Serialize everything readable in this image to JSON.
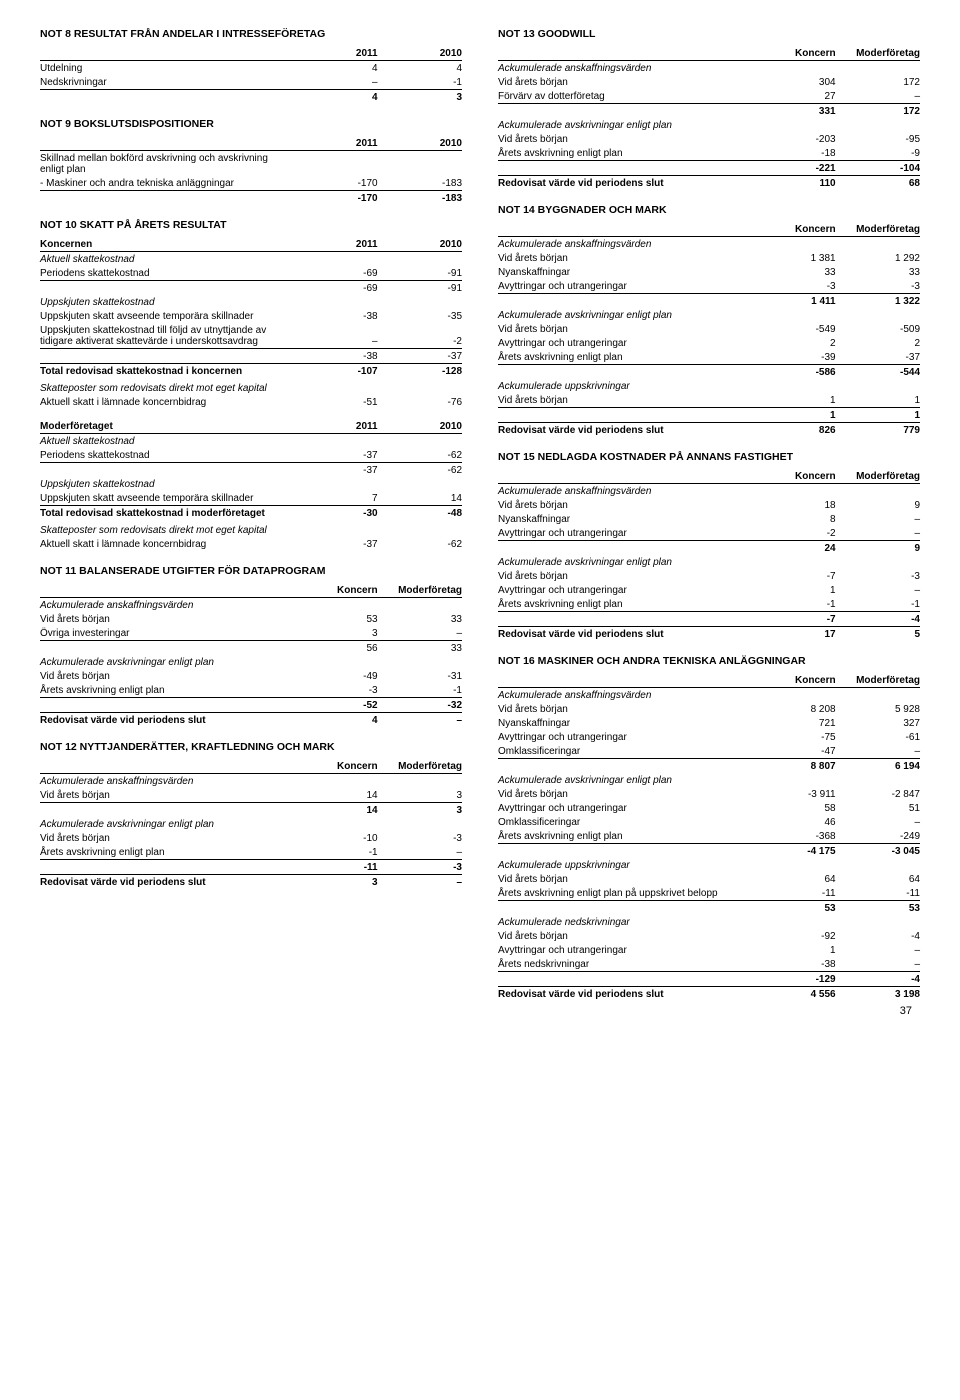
{
  "pageNumber": "37",
  "left": {
    "not8": {
      "title": "NOT 8   RESULTAT FRÅN ANDELAR I INTRESSEFÖRETAG",
      "hdr": [
        "",
        "2011",
        "2010"
      ],
      "rows": [
        [
          "Utdelning",
          "4",
          "4"
        ],
        [
          "Nedskrivningar",
          "–",
          "-1"
        ]
      ],
      "sum": [
        "",
        "4",
        "3"
      ]
    },
    "not9": {
      "title": "NOT 9   BOKSLUTSDISPOSITIONER",
      "hdr": [
        "",
        "2011",
        "2010"
      ],
      "rows": [
        [
          "Skillnad mellan bokförd avskrivning och avskrivning enligt plan",
          "",
          ""
        ],
        [
          "-  Maskiner och andra tekniska anläggningar",
          "-170",
          "-183"
        ]
      ],
      "sum": [
        "",
        "-170",
        "-183"
      ]
    },
    "not10": {
      "title": "NOT 10   SKATT PÅ ÅRETS RESULTAT",
      "k_hdr": [
        "Koncernen",
        "2011",
        "2010"
      ],
      "k_rows": [
        {
          "lbl": "Aktuell skattekostnad",
          "v1": "",
          "v2": "",
          "ital": true
        },
        {
          "lbl": "Periodens skattekostnad",
          "v1": "-69",
          "v2": "-91"
        },
        {
          "lbl": "",
          "v1": "-69",
          "v2": "-91",
          "sum": true
        },
        {
          "lbl": "Uppskjuten skattekostnad",
          "v1": "",
          "v2": "",
          "ital": true
        },
        {
          "lbl": "Uppskjuten skatt avseende temporära skillnader",
          "v1": "-38",
          "v2": "-35"
        },
        {
          "lbl": "Uppskjuten skattekostnad till följd av utnyttjande av tidigare aktiverat skattevärde i underskottsavdrag",
          "v1": "–",
          "v2": "-2"
        },
        {
          "lbl": "",
          "v1": "-38",
          "v2": "-37",
          "sum": true
        },
        {
          "lbl": "Total redovisad skattekostnad i koncernen",
          "v1": "-107",
          "v2": "-128",
          "bold": true,
          "btop": true
        },
        {
          "lbl": "",
          "v1": "",
          "v2": ""
        },
        {
          "lbl": "Skatteposter som redovisats direkt mot eget kapital",
          "v1": "",
          "v2": "",
          "ital": true
        },
        {
          "lbl": "Aktuell skatt i lämnade koncernbidrag",
          "v1": "-51",
          "v2": "-76"
        }
      ],
      "m_hdr": [
        "Moderföretaget",
        "2011",
        "2010"
      ],
      "m_rows": [
        {
          "lbl": "Aktuell skattekostnad",
          "v1": "",
          "v2": "",
          "ital": true
        },
        {
          "lbl": "Periodens skattekostnad",
          "v1": "-37",
          "v2": "-62"
        },
        {
          "lbl": "",
          "v1": "-37",
          "v2": "-62",
          "sum": true
        },
        {
          "lbl": "Uppskjuten skattekostnad",
          "v1": "",
          "v2": "",
          "ital": true
        },
        {
          "lbl": "Uppskjuten skatt avseende temporära skillnader",
          "v1": "7",
          "v2": "14"
        },
        {
          "lbl": "Total redovisad skattekostnad i moderföretaget",
          "v1": "-30",
          "v2": "-48",
          "bold": true,
          "btop": true
        },
        {
          "lbl": "",
          "v1": "",
          "v2": ""
        },
        {
          "lbl": "Skatteposter som redovisats direkt mot eget kapital",
          "v1": "",
          "v2": "",
          "ital": true
        },
        {
          "lbl": "Aktuell skatt i lämnade koncernbidrag",
          "v1": "-37",
          "v2": "-62"
        }
      ]
    },
    "not11": {
      "title": "NOT 11   BALANSERADE UTGIFTER FÖR DATAPROGRAM",
      "hdr": [
        "",
        "Koncern",
        "Moderföretag"
      ],
      "rows": [
        {
          "lbl": "Ackumulerade anskaffningsvärden",
          "v1": "",
          "v2": "",
          "ital": true
        },
        {
          "lbl": "Vid årets början",
          "v1": "53",
          "v2": "33"
        },
        {
          "lbl": "Övriga investeringar",
          "v1": "3",
          "v2": "–"
        },
        {
          "lbl": "",
          "v1": "56",
          "v2": "33",
          "sum": true
        },
        {
          "lbl": "Ackumulerade avskrivningar enligt plan",
          "v1": "",
          "v2": "",
          "ital": true
        },
        {
          "lbl": "Vid årets början",
          "v1": "-49",
          "v2": "-31"
        },
        {
          "lbl": "Årets avskrivning enligt plan",
          "v1": "-3",
          "v2": "-1"
        },
        {
          "lbl": "",
          "v1": "-52",
          "v2": "-32",
          "sum": true,
          "bold": true
        },
        {
          "lbl": "Redovisat värde vid periodens slut",
          "v1": "4",
          "v2": "–",
          "bold": true,
          "btop": true
        }
      ]
    },
    "not12": {
      "title": "NOT 12   NYTTJANDERÄTTER, KRAFTLEDNING OCH MARK",
      "hdr": [
        "",
        "Koncern",
        "Moderföretag"
      ],
      "rows": [
        {
          "lbl": "Ackumulerade anskaffningsvärden",
          "v1": "",
          "v2": "",
          "ital": true
        },
        {
          "lbl": "Vid årets början",
          "v1": "14",
          "v2": "3"
        },
        {
          "lbl": "",
          "v1": "14",
          "v2": "3",
          "sum": true,
          "bold": true
        },
        {
          "lbl": "Ackumulerade avskrivningar enligt plan",
          "v1": "",
          "v2": "",
          "ital": true
        },
        {
          "lbl": "Vid årets början",
          "v1": "-10",
          "v2": "-3"
        },
        {
          "lbl": "Årets avskrivning enligt plan",
          "v1": "-1",
          "v2": "–"
        },
        {
          "lbl": "",
          "v1": "-11",
          "v2": "-3",
          "sum": true,
          "bold": true
        },
        {
          "lbl": "Redovisat värde vid periodens slut",
          "v1": "3",
          "v2": "–",
          "bold": true,
          "btop": true
        }
      ]
    }
  },
  "right": {
    "not13": {
      "title": "NOT 13   GOODWILL",
      "hdr": [
        "",
        "Koncern",
        "Moderföretag"
      ],
      "rows": [
        {
          "lbl": "Ackumulerade anskaffningsvärden",
          "v1": "",
          "v2": "",
          "ital": true
        },
        {
          "lbl": "Vid årets början",
          "v1": "304",
          "v2": "172"
        },
        {
          "lbl": "Förvärv av dotterföretag",
          "v1": "27",
          "v2": "–"
        },
        {
          "lbl": "",
          "v1": "331",
          "v2": "172",
          "sum": true,
          "bold": true
        },
        {
          "lbl": "Ackumulerade avskrivningar enligt plan",
          "v1": "",
          "v2": "",
          "ital": true
        },
        {
          "lbl": "Vid årets början",
          "v1": "-203",
          "v2": "-95"
        },
        {
          "lbl": "Årets avskrivning enligt plan",
          "v1": "-18",
          "v2": "-9"
        },
        {
          "lbl": "",
          "v1": "-221",
          "v2": "-104",
          "sum": true,
          "bold": true
        },
        {
          "lbl": "Redovisat värde vid periodens slut",
          "v1": "110",
          "v2": "68",
          "bold": true,
          "btop": true
        }
      ]
    },
    "not14": {
      "title": "NOT 14   BYGGNADER OCH MARK",
      "hdr": [
        "",
        "Koncern",
        "Moderföretag"
      ],
      "rows": [
        {
          "lbl": "Ackumulerade anskaffningsvärden",
          "v1": "",
          "v2": "",
          "ital": true
        },
        {
          "lbl": "Vid årets början",
          "v1": "1 381",
          "v2": "1 292"
        },
        {
          "lbl": "Nyanskaffningar",
          "v1": "33",
          "v2": "33"
        },
        {
          "lbl": "Avyttringar och utrangeringar",
          "v1": "-3",
          "v2": "-3"
        },
        {
          "lbl": "",
          "v1": "1 411",
          "v2": "1 322",
          "sum": true,
          "bold": true
        },
        {
          "lbl": "Ackumulerade avskrivningar enligt plan",
          "v1": "",
          "v2": "",
          "ital": true
        },
        {
          "lbl": "Vid årets början",
          "v1": "-549",
          "v2": "-509"
        },
        {
          "lbl": "Avyttringar och utrangeringar",
          "v1": "2",
          "v2": "2"
        },
        {
          "lbl": "Årets avskrivning enligt plan",
          "v1": "-39",
          "v2": "-37"
        },
        {
          "lbl": "",
          "v1": "-586",
          "v2": "-544",
          "sum": true,
          "bold": true
        },
        {
          "lbl": "Ackumulerade uppskrivningar",
          "v1": "",
          "v2": "",
          "ital": true
        },
        {
          "lbl": "Vid årets början",
          "v1": "1",
          "v2": "1"
        },
        {
          "lbl": "",
          "v1": "1",
          "v2": "1",
          "sum": true,
          "bold": true
        },
        {
          "lbl": "Redovisat värde vid periodens slut",
          "v1": "826",
          "v2": "779",
          "bold": true,
          "btop": true
        }
      ]
    },
    "not15": {
      "title": "NOT 15   NEDLAGDA KOSTNADER PÅ ANNANS FASTIGHET",
      "hdr": [
        "",
        "Koncern",
        "Moderföretag"
      ],
      "rows": [
        {
          "lbl": "Ackumulerade anskaffningsvärden",
          "v1": "",
          "v2": "",
          "ital": true
        },
        {
          "lbl": "Vid årets början",
          "v1": "18",
          "v2": "9"
        },
        {
          "lbl": "Nyanskaffningar",
          "v1": "8",
          "v2": "–"
        },
        {
          "lbl": "Avyttringar och utrangeringar",
          "v1": "-2",
          "v2": "–"
        },
        {
          "lbl": "",
          "v1": "24",
          "v2": "9",
          "sum": true,
          "bold": true
        },
        {
          "lbl": "Ackumulerade avskrivningar enligt plan",
          "v1": "",
          "v2": "",
          "ital": true
        },
        {
          "lbl": "Vid årets början",
          "v1": "-7",
          "v2": "-3"
        },
        {
          "lbl": "Avyttringar och utrangeringar",
          "v1": "1",
          "v2": "–"
        },
        {
          "lbl": "Årets avskrivning enligt plan",
          "v1": "-1",
          "v2": "-1"
        },
        {
          "lbl": "",
          "v1": "-7",
          "v2": "-4",
          "sum": true,
          "bold": true
        },
        {
          "lbl": "Redovisat värde vid periodens slut",
          "v1": "17",
          "v2": "5",
          "bold": true,
          "btop": true
        }
      ]
    },
    "not16": {
      "title": "NOT 16   MASKINER OCH ANDRA TEKNISKA ANLÄGGNINGAR",
      "hdr": [
        "",
        "Koncern",
        "Moderföretag"
      ],
      "rows": [
        {
          "lbl": "Ackumulerade anskaffningsvärden",
          "v1": "",
          "v2": "",
          "ital": true
        },
        {
          "lbl": "Vid årets början",
          "v1": "8 208",
          "v2": "5 928"
        },
        {
          "lbl": "Nyanskaffningar",
          "v1": "721",
          "v2": "327"
        },
        {
          "lbl": "Avyttringar och utrangeringar",
          "v1": "-75",
          "v2": "-61"
        },
        {
          "lbl": "Omklassificeringar",
          "v1": "-47",
          "v2": "–"
        },
        {
          "lbl": "",
          "v1": "8 807",
          "v2": "6 194",
          "sum": true,
          "bold": true
        },
        {
          "lbl": "Ackumulerade avskrivningar enligt plan",
          "v1": "",
          "v2": "",
          "ital": true
        },
        {
          "lbl": "Vid årets början",
          "v1": "-3 911",
          "v2": "-2 847"
        },
        {
          "lbl": "Avyttringar och utrangeringar",
          "v1": "58",
          "v2": "51"
        },
        {
          "lbl": "Omklassificeringar",
          "v1": "46",
          "v2": "–"
        },
        {
          "lbl": "Årets avskrivning enligt plan",
          "v1": "-368",
          "v2": "-249"
        },
        {
          "lbl": "",
          "v1": "-4 175",
          "v2": "-3 045",
          "sum": true,
          "bold": true
        },
        {
          "lbl": "Ackumulerade uppskrivningar",
          "v1": "",
          "v2": "",
          "ital": true
        },
        {
          "lbl": "Vid årets början",
          "v1": "64",
          "v2": "64"
        },
        {
          "lbl": "Årets avskrivning enligt plan på uppskrivet belopp",
          "v1": "-11",
          "v2": "-11"
        },
        {
          "lbl": "",
          "v1": "53",
          "v2": "53",
          "sum": true,
          "bold": true
        },
        {
          "lbl": "Ackumulerade nedskrivningar",
          "v1": "",
          "v2": "",
          "ital": true
        },
        {
          "lbl": "Vid årets början",
          "v1": "-92",
          "v2": "-4"
        },
        {
          "lbl": "Avyttringar och utrangeringar",
          "v1": "1",
          "v2": "–"
        },
        {
          "lbl": "Årets nedskrivningar",
          "v1": "-38",
          "v2": "–"
        },
        {
          "lbl": "",
          "v1": "-129",
          "v2": "-4",
          "sum": true,
          "bold": true
        },
        {
          "lbl": "Redovisat värde vid periodens slut",
          "v1": "4 556",
          "v2": "3 198",
          "bold": true,
          "btop": true
        }
      ]
    }
  }
}
